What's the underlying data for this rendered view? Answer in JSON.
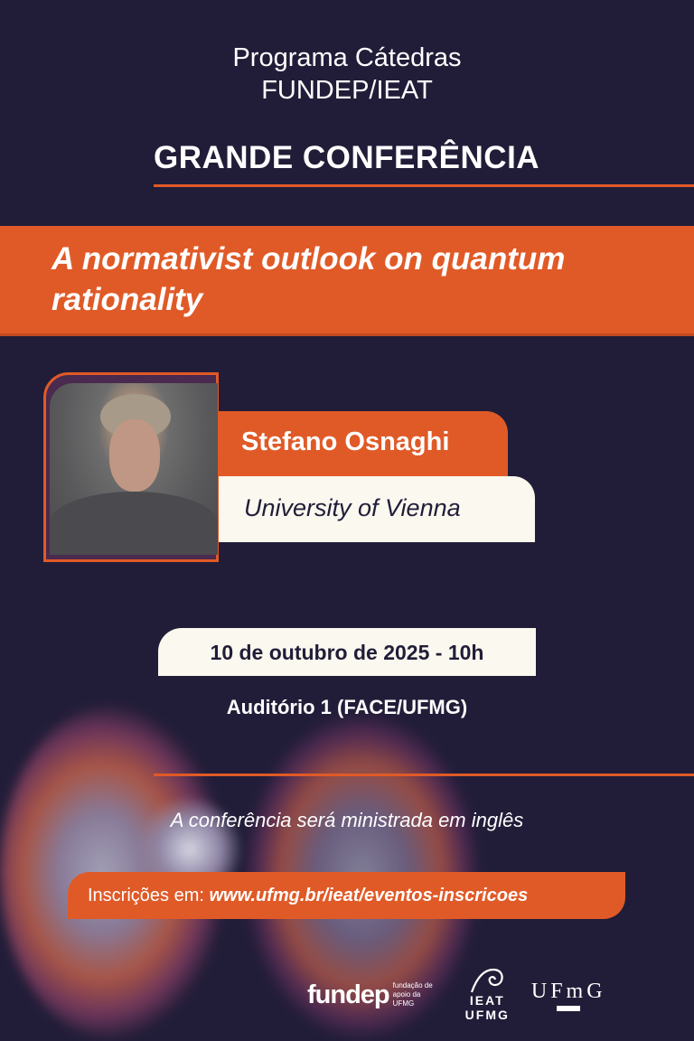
{
  "header": {
    "program_line1": "Programa Cátedras",
    "program_line2": "FUNDEP/IEAT",
    "event_type": "GRANDE CONFERÊNCIA"
  },
  "talk": {
    "title": "A normativist outlook on quantum rationality"
  },
  "speaker": {
    "name": "Stefano Osnaghi",
    "affiliation": "University of Vienna"
  },
  "event": {
    "datetime": "10 de outubro de 2025 - 10h",
    "location": "Auditório 1 (FACE/UFMG)",
    "language_note": "A conferência será ministrada em inglês"
  },
  "registration": {
    "label": "Inscrições em:",
    "url": "www.ufmg.br/ieat/eventos-inscricoes"
  },
  "logos": {
    "fundep": "fundep",
    "fundep_sub": "fundação de apoio da UFMG",
    "ieat": "IEAT",
    "ieat_sub": "UFMG",
    "ufmg": "UFmG"
  },
  "colors": {
    "background": "#211d38",
    "accent": "#e05a27",
    "cream": "#fbf8ef"
  }
}
